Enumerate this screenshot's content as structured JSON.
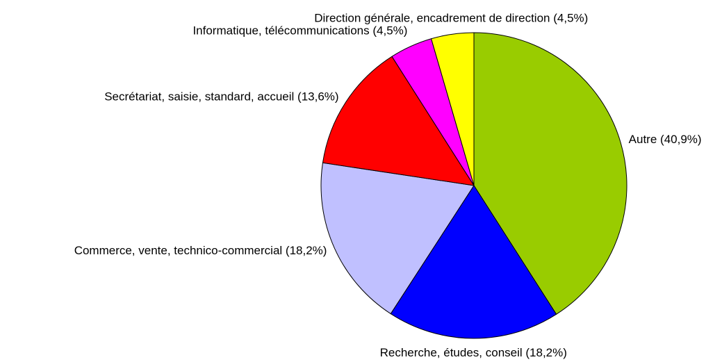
{
  "chart_data": {
    "type": "pie",
    "categories": [
      "Autre",
      "Recherche, études, conseil",
      "Commerce, vente, technico-commercial",
      "Secrétariat, saisie, standard, accueil",
      "Informatique, télécommunications",
      "Direction générale, encadrement de direction"
    ],
    "values": [
      40.9,
      18.2,
      18.2,
      13.6,
      4.5,
      4.5
    ],
    "value_labels": [
      "(40,9%)",
      "(18,2%)",
      "(18,2%)",
      "(13,6%)",
      "(4,5%)",
      "(4,5%)"
    ],
    "colors": [
      "#99cc00",
      "#0000ff",
      "#c0c0ff",
      "#ff0000",
      "#ff00ff",
      "#ffff00"
    ]
  }
}
